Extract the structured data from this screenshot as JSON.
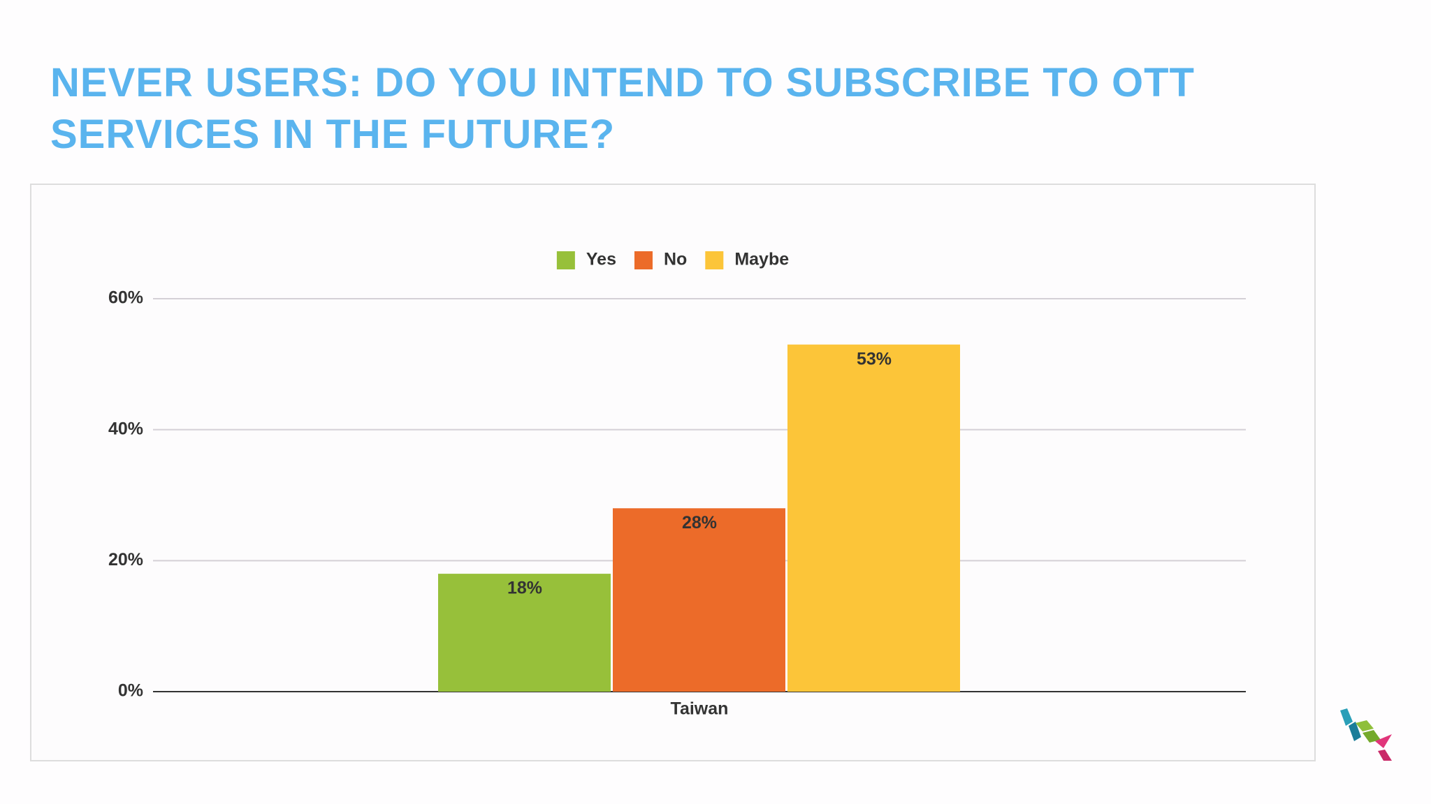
{
  "chart_data": {
    "type": "bar",
    "title": "NEVER USERS: DO YOU INTEND TO SUBSCRIBE TO OTT SERVICES IN THE FUTURE?",
    "categories": [
      "Taiwan"
    ],
    "series": [
      {
        "name": "Yes",
        "color": "#97c03a",
        "values": [
          18
        ],
        "value_labels": [
          "18%"
        ]
      },
      {
        "name": "No",
        "color": "#ec6b29",
        "values": [
          28
        ],
        "value_labels": [
          "28%"
        ]
      },
      {
        "name": "Maybe",
        "color": "#fcc539",
        "values": [
          53
        ],
        "value_labels": [
          "53%"
        ]
      }
    ],
    "ylim": [
      0,
      60
    ],
    "yticks": [
      {
        "value": 0,
        "label": "0%"
      },
      {
        "value": 20,
        "label": "20%"
      },
      {
        "value": 40,
        "label": "40%"
      },
      {
        "value": 60,
        "label": "60%"
      }
    ],
    "grid": true,
    "legend": "top"
  }
}
